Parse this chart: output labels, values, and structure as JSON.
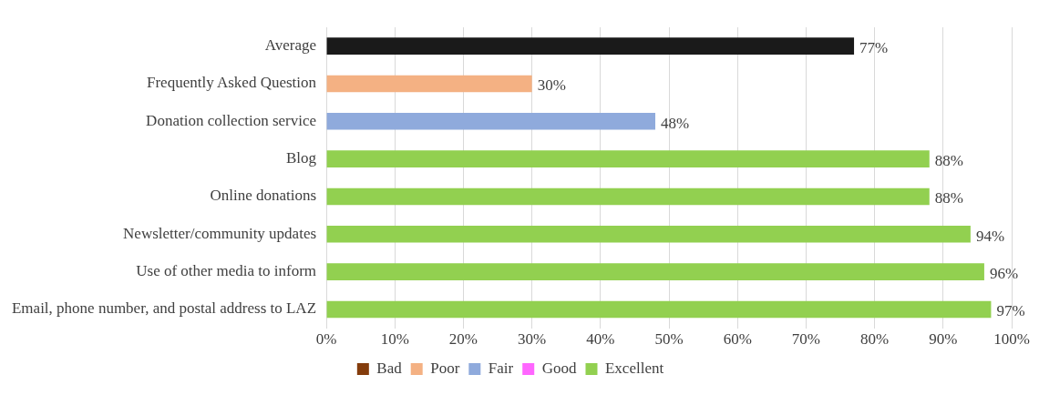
{
  "chart_data": {
    "type": "bar",
    "orientation": "horizontal",
    "categories": [
      "Average",
      "Frequently Asked Question",
      "Donation collection service",
      "Blog",
      "Online donations",
      "Newsletter/community updates",
      "Use of other media to inform",
      "Email, phone number, and postal address to LAZ"
    ],
    "series": [
      {
        "color": "#1a1a1a",
        "values": [
          77,
          null,
          null,
          null,
          null,
          null,
          null,
          null
        ],
        "value_labels": [
          "77%",
          null,
          null,
          null,
          null,
          null,
          null,
          null
        ]
      },
      {
        "name": "Bad",
        "color": "#843c0c",
        "values": [
          null,
          null,
          null,
          null,
          null,
          null,
          null,
          null
        ]
      },
      {
        "name": "Poor",
        "color": "#f4b183",
        "values": [
          null,
          30,
          null,
          null,
          null,
          null,
          null,
          null
        ],
        "value_labels": [
          null,
          "30%",
          null,
          null,
          null,
          null,
          null,
          null
        ]
      },
      {
        "name": "Fair",
        "color": "#8faadc",
        "values": [
          null,
          null,
          48,
          null,
          null,
          null,
          null,
          null
        ],
        "value_labels": [
          null,
          null,
          "48%",
          null,
          null,
          null,
          null,
          null
        ]
      },
      {
        "name": "Good",
        "color": "#ff66ff",
        "values": [
          null,
          null,
          null,
          null,
          null,
          null,
          null,
          null
        ]
      },
      {
        "name": "Excellent",
        "color": "#92d050",
        "values": [
          null,
          null,
          null,
          88,
          88,
          94,
          96,
          97
        ],
        "value_labels": [
          null,
          null,
          null,
          "88%",
          "88%",
          "94%",
          "96%",
          "97%"
        ]
      }
    ],
    "xlim": [
      0,
      100
    ],
    "xticks": [
      {
        "value": 0,
        "label": "0%"
      },
      {
        "value": 10,
        "label": "10%"
      },
      {
        "value": 20,
        "label": "20%"
      },
      {
        "value": 30,
        "label": "30%"
      },
      {
        "value": 40,
        "label": "40%"
      },
      {
        "value": 50,
        "label": "50%"
      },
      {
        "value": 60,
        "label": "60%"
      },
      {
        "value": 70,
        "label": "70%"
      },
      {
        "value": 80,
        "label": "80%"
      },
      {
        "value": 90,
        "label": "90%"
      },
      {
        "value": 100,
        "label": "100%"
      }
    ],
    "grid": "x",
    "legend": "bottom"
  }
}
